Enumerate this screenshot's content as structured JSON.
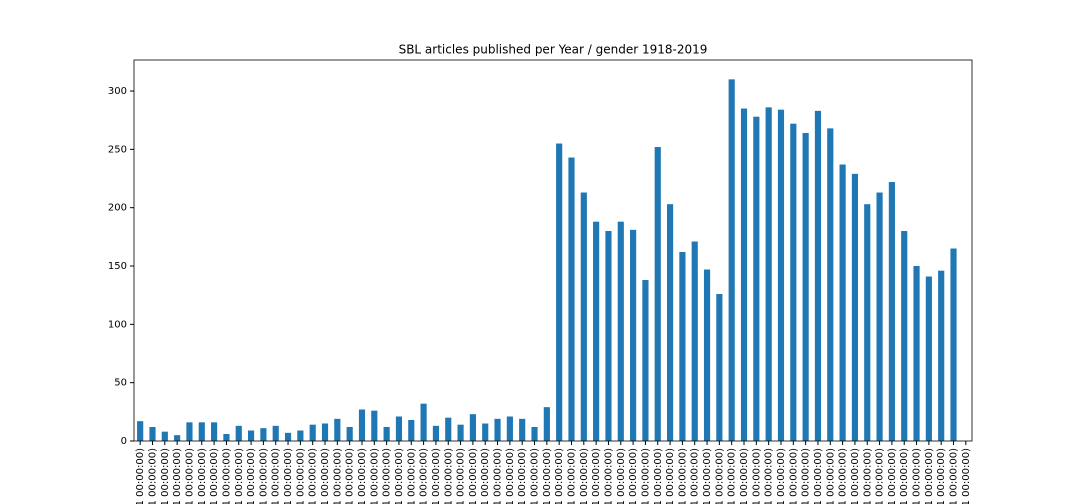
{
  "chart_data": {
    "type": "bar",
    "title": "SBL articles published per Year / gender 1918-2019",
    "categories": [
      "1 00:00:00)",
      "1 00:00:00)",
      "1 00:00:00)",
      "1 00:00:00)",
      "1 00:00:00)",
      "1 00:00:00)",
      "1 00:00:00)",
      "1 00:00:00)",
      "1 00:00:00)",
      "1 00:00:00)",
      "1 00:00:00)",
      "1 00:00:00)",
      "1 00:00:00)",
      "1 00:00:00)",
      "1 00:00:00)",
      "1 00:00:00)",
      "1 00:00:00)",
      "1 00:00:00)",
      "1 00:00:00)",
      "1 00:00:00)",
      "1 00:00:00)",
      "1 00:00:00)",
      "1 00:00:00)",
      "1 00:00:00)",
      "1 00:00:00)",
      "1 00:00:00)",
      "1 00:00:00)",
      "1 00:00:00)",
      "1 00:00:00)",
      "1 00:00:00)",
      "1 00:00:00)",
      "1 00:00:00)",
      "1 00:00:00)",
      "1 00:00:00)",
      "1 00:00:00)",
      "1 00:00:00)",
      "1 00:00:00)",
      "1 00:00:00)",
      "1 00:00:00)",
      "1 00:00:00)",
      "1 00:00:00)",
      "1 00:00:00)",
      "1 00:00:00)",
      "1 00:00:00)",
      "1 00:00:00)",
      "1 00:00:00)",
      "1 00:00:00)",
      "1 00:00:00)",
      "1 00:00:00)",
      "1 00:00:00)",
      "1 00:00:00)",
      "1 00:00:00)",
      "1 00:00:00)",
      "1 00:00:00)",
      "1 00:00:00)",
      "1 00:00:00)",
      "1 00:00:00)",
      "1 00:00:00)",
      "1 00:00:00)",
      "1 00:00:00)",
      "1 00:00:00)",
      "1 00:00:00)",
      "1 00:00:00)",
      "1 00:00:00)",
      "1 00:00:00)",
      "1 00:00:00)",
      "1 00:00:00)",
      "1 00:00:00)"
    ],
    "values": [
      17,
      12,
      8,
      5,
      16,
      16,
      16,
      6,
      13,
      9,
      11,
      13,
      7,
      9,
      14,
      15,
      19,
      12,
      27,
      26,
      12,
      21,
      18,
      32,
      13,
      20,
      14,
      23,
      15,
      19,
      21,
      19,
      12,
      29,
      255,
      243,
      213,
      188,
      180,
      188,
      181,
      138,
      252,
      203,
      162,
      171,
      147,
      126,
      310,
      285,
      278,
      286,
      284,
      272,
      264,
      283,
      268,
      237,
      229,
      203,
      213,
      222,
      180,
      150,
      141,
      146,
      165,
      null
    ],
    "color": "#1f77b4",
    "ylim": [
      0,
      326.6
    ],
    "yticks": [
      0,
      50,
      100,
      150,
      200,
      250,
      300
    ]
  }
}
